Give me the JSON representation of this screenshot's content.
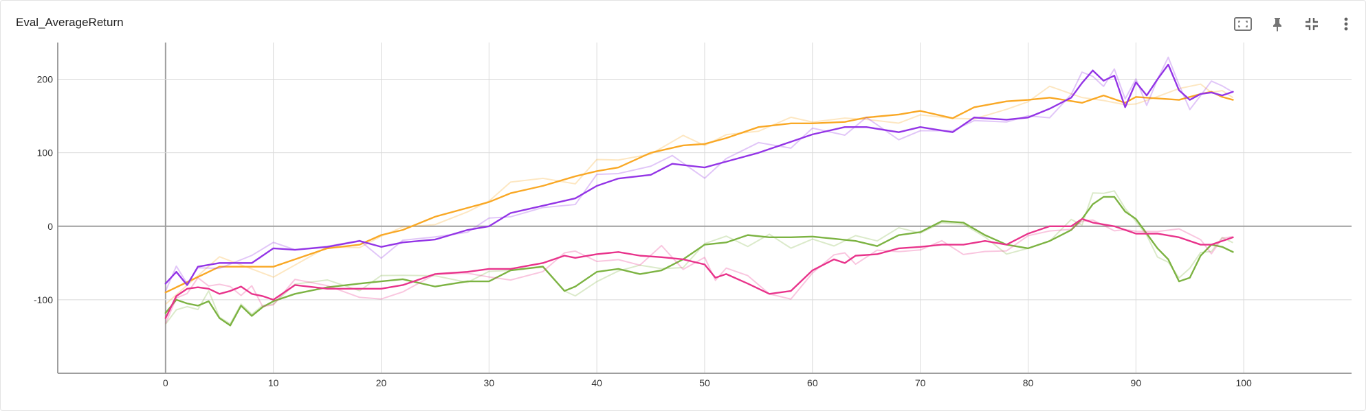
{
  "header": {
    "title": "Eval_AverageReturn",
    "icons": [
      "fit-domain-icon",
      "pin-icon",
      "collapse-icon",
      "more-vert-icon"
    ]
  },
  "chart_data": {
    "type": "line",
    "title": "Eval_AverageReturn",
    "xlabel": "",
    "ylabel": "",
    "xlim": [
      -10,
      110
    ],
    "ylim": [
      -200,
      250
    ],
    "xticks": [
      0,
      10,
      20,
      30,
      40,
      50,
      60,
      70,
      80,
      90,
      100
    ],
    "xtick_labels": [
      "0",
      "10",
      "20",
      "30",
      "40",
      "50",
      "60",
      "70",
      "80",
      "90",
      "100"
    ],
    "yticks": [
      -100,
      0,
      100,
      200
    ],
    "ytick_labels": [
      "-100",
      "0",
      "100",
      "200"
    ],
    "grid": true,
    "legend": "none",
    "series": [
      {
        "color": "#f9a825",
        "x": [
          0,
          5,
          10,
          15,
          18,
          20,
          22,
          25,
          28,
          30,
          32,
          35,
          38,
          40,
          42,
          45,
          48,
          50,
          52,
          55,
          58,
          60,
          63,
          65,
          68,
          70,
          73,
          75,
          78,
          80,
          82,
          85,
          87,
          89,
          90,
          92,
          94,
          96,
          97,
          98,
          99
        ],
        "y": [
          -90,
          -55,
          -55,
          -30,
          -25,
          -12,
          -5,
          13,
          25,
          33,
          45,
          55,
          68,
          75,
          80,
          100,
          110,
          112,
          120,
          135,
          140,
          140,
          142,
          148,
          152,
          157,
          147,
          162,
          170,
          172,
          175,
          168,
          178,
          168,
          176,
          174,
          172,
          180,
          183,
          176,
          172
        ]
      },
      {
        "color": "#9334e6",
        "x": [
          0,
          1,
          2,
          3,
          5,
          8,
          10,
          12,
          15,
          18,
          20,
          22,
          25,
          28,
          30,
          32,
          35,
          38,
          40,
          42,
          45,
          47,
          50,
          52,
          55,
          58,
          60,
          63,
          65,
          68,
          70,
          73,
          75,
          78,
          80,
          82,
          84,
          85,
          86,
          87,
          88,
          89,
          90,
          91,
          92,
          93,
          94,
          95,
          96,
          97,
          98,
          99
        ],
        "y": [
          -78,
          -62,
          -80,
          -55,
          -50,
          -50,
          -30,
          -32,
          -28,
          -20,
          -28,
          -22,
          -18,
          -5,
          0,
          18,
          28,
          38,
          55,
          65,
          70,
          85,
          80,
          88,
          100,
          115,
          125,
          135,
          135,
          128,
          135,
          128,
          148,
          145,
          148,
          160,
          175,
          195,
          212,
          198,
          205,
          162,
          196,
          178,
          200,
          220,
          185,
          172,
          180,
          182,
          178,
          183
        ]
      },
      {
        "color": "#7cb342",
        "x": [
          0,
          1,
          2,
          3,
          4,
          5,
          6,
          7,
          8,
          9,
          10,
          12,
          15,
          18,
          20,
          22,
          25,
          28,
          30,
          32,
          35,
          37,
          38,
          40,
          42,
          44,
          46,
          48,
          50,
          52,
          54,
          56,
          58,
          60,
          62,
          64,
          66,
          68,
          70,
          72,
          74,
          76,
          78,
          80,
          82,
          84,
          85,
          86,
          87,
          88,
          89,
          90,
          91,
          92,
          93,
          94,
          95,
          96,
          97,
          98,
          99
        ],
        "y": [
          -118,
          -100,
          -105,
          -108,
          -102,
          -125,
          -135,
          -108,
          -122,
          -110,
          -102,
          -92,
          -83,
          -78,
          -75,
          -72,
          -82,
          -75,
          -75,
          -60,
          -55,
          -88,
          -82,
          -62,
          -58,
          -65,
          -60,
          -45,
          -25,
          -22,
          -12,
          -15,
          -15,
          -14,
          -17,
          -20,
          -27,
          -12,
          -8,
          7,
          5,
          -12,
          -25,
          -30,
          -20,
          -5,
          10,
          30,
          40,
          40,
          20,
          10,
          -10,
          -30,
          -45,
          -75,
          -70,
          -40,
          -25,
          -28,
          -35
        ]
      },
      {
        "color": "#e8338b",
        "x": [
          0,
          1,
          2,
          3,
          4,
          5,
          6,
          7,
          8,
          9,
          10,
          12,
          15,
          18,
          20,
          22,
          25,
          28,
          30,
          32,
          35,
          37,
          38,
          40,
          42,
          44,
          46,
          48,
          50,
          51,
          52,
          54,
          56,
          58,
          60,
          62,
          63,
          64,
          66,
          68,
          70,
          72,
          74,
          76,
          78,
          80,
          82,
          84,
          85,
          86,
          88,
          89,
          90,
          92,
          94,
          96,
          97,
          98,
          99
        ],
        "y": [
          -125,
          -95,
          -85,
          -83,
          -85,
          -92,
          -88,
          -82,
          -92,
          -95,
          -100,
          -80,
          -85,
          -85,
          -85,
          -80,
          -65,
          -62,
          -58,
          -58,
          -50,
          -40,
          -43,
          -38,
          -35,
          -40,
          -42,
          -45,
          -52,
          -70,
          -65,
          -78,
          -92,
          -88,
          -60,
          -45,
          -50,
          -40,
          -38,
          -30,
          -28,
          -25,
          -25,
          -20,
          -25,
          -10,
          0,
          0,
          10,
          5,
          0,
          -5,
          -10,
          -10,
          -15,
          -25,
          -25,
          -20,
          -15
        ]
      }
    ]
  }
}
